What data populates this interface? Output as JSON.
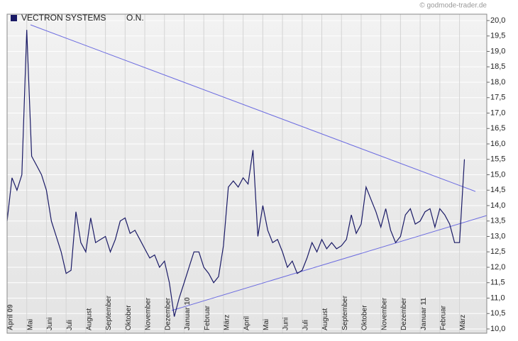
{
  "chart_data": {
    "type": "line",
    "source": "© godmode-trader.de",
    "legend_note": "O.N.",
    "categories": [
      "April 09",
      null,
      null,
      null,
      "Mai",
      null,
      null,
      null,
      "Juni",
      null,
      null,
      null,
      "Juli",
      null,
      null,
      null,
      "August",
      null,
      null,
      null,
      "September",
      null,
      null,
      null,
      "Oktober",
      null,
      null,
      null,
      "November",
      null,
      null,
      null,
      "Dezember",
      null,
      null,
      null,
      "Januar 10",
      null,
      null,
      null,
      "Februar",
      null,
      null,
      null,
      "März",
      null,
      null,
      null,
      "April",
      null,
      null,
      null,
      "Mai",
      null,
      null,
      null,
      "Juni",
      null,
      null,
      null,
      "Juli",
      null,
      null,
      null,
      "August",
      null,
      null,
      null,
      "September",
      null,
      null,
      null,
      "Oktober",
      null,
      null,
      null,
      "November",
      null,
      null,
      null,
      "Dezember",
      null,
      null,
      null,
      "Januar 11",
      null,
      null,
      null,
      "Februar",
      null,
      null,
      null,
      "März",
      null
    ],
    "series": [
      {
        "name": "VECTRON SYSTEMS",
        "color": "#1a1a66",
        "values": [
          13.5,
          14.9,
          14.5,
          15.0,
          19.7,
          15.6,
          15.3,
          15.0,
          14.5,
          13.5,
          13.0,
          12.5,
          11.8,
          11.9,
          13.8,
          12.8,
          12.5,
          13.6,
          12.8,
          12.9,
          13.0,
          12.5,
          12.9,
          13.5,
          13.6,
          13.1,
          13.2,
          12.9,
          12.6,
          12.3,
          12.4,
          12.0,
          12.2,
          11.5,
          10.4,
          11.0,
          11.5,
          12.0,
          12.5,
          12.5,
          12.0,
          11.8,
          11.5,
          11.7,
          12.7,
          14.6,
          14.8,
          14.6,
          14.9,
          14.7,
          15.8,
          13.0,
          14.0,
          13.2,
          12.8,
          12.9,
          12.5,
          12.0,
          12.2,
          11.8,
          11.9,
          12.3,
          12.8,
          12.5,
          12.9,
          12.6,
          12.8,
          12.6,
          12.7,
          12.9,
          13.7,
          13.1,
          13.4,
          14.6,
          14.2,
          13.8,
          13.3,
          13.9,
          13.2,
          12.8,
          13.0,
          13.7,
          13.9,
          13.4,
          13.5,
          13.8,
          13.9,
          13.3,
          13.9,
          13.7,
          13.4,
          12.8,
          12.8,
          15.5
        ]
      }
    ],
    "ylim": [
      10,
      20
    ],
    "yticks": [
      {
        "value": 10,
        "label": "10,0"
      },
      {
        "value": 10.5,
        "label": "10,5"
      },
      {
        "value": 11,
        "label": "11,0"
      },
      {
        "value": 11.5,
        "label": "11,5"
      },
      {
        "value": 12,
        "label": "12,0"
      },
      {
        "value": 12.5,
        "label": "12,5"
      },
      {
        "value": 13,
        "label": "13,0"
      },
      {
        "value": 13.5,
        "label": "13,5"
      },
      {
        "value": 14,
        "label": "14,0"
      },
      {
        "value": 14.5,
        "label": "14,5"
      },
      {
        "value": 15,
        "label": "15,0"
      },
      {
        "value": 15.5,
        "label": "15,5"
      },
      {
        "value": 16,
        "label": "16,0"
      },
      {
        "value": 16.5,
        "label": "16,5"
      },
      {
        "value": 17,
        "label": "17,0"
      },
      {
        "value": 17.5,
        "label": "17,5"
      },
      {
        "value": 18,
        "label": "18,0"
      },
      {
        "value": 18.5,
        "label": "18,5"
      },
      {
        "value": 19,
        "label": "19,0"
      },
      {
        "value": 19.5,
        "label": "19,5"
      },
      {
        "value": 20,
        "label": "20,0"
      }
    ],
    "grid": true
  }
}
